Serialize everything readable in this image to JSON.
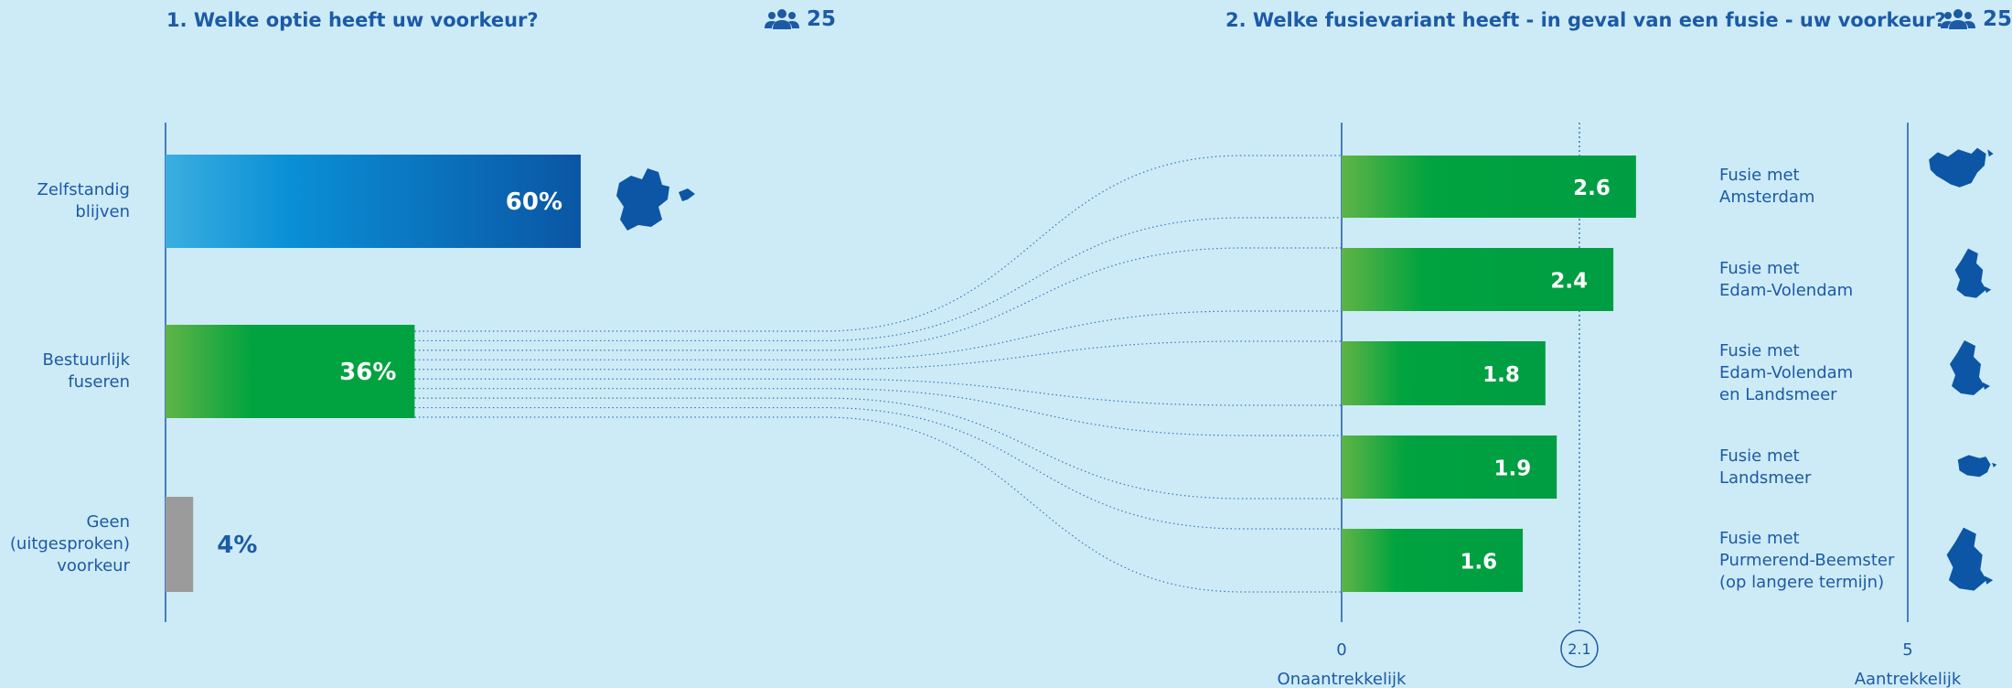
{
  "colors": {
    "background": "#cdebf7",
    "text": "#1c5aa6",
    "blue_bar_start": "#3aaee0",
    "blue_bar_end": "#0a56a4",
    "green_bar_start": "#5fb446",
    "green_bar_end": "#00a33f",
    "grey_bar": "#9b9b9b",
    "map_fill": "#0d56a5"
  },
  "icons": {
    "respondents": "people-group-icon",
    "map": "municipality-map-icon"
  },
  "chart_data": [
    {
      "type": "bar",
      "orientation": "horizontal",
      "title": "1. Welke optie heeft uw voorkeur?",
      "respondents": "25",
      "categories": [
        "Zelfstandig blijven",
        "Bestuurlijk fuseren",
        "Geen (uitgesproken) voorkeur"
      ],
      "values": [
        60,
        36,
        4
      ],
      "value_labels": [
        "60%",
        "36%",
        "4%"
      ],
      "unit": "%",
      "xlim": [
        0,
        100
      ]
    },
    {
      "type": "bar",
      "orientation": "horizontal",
      "title": "2. Welke fusievariant heeft - in geval van een fusie - uw voorkeur?",
      "respondents": "25",
      "categories": [
        "Fusie met Amsterdam",
        "Fusie met Edam-Volendam",
        "Fusie met Edam-Volendam en Landsmeer",
        "Fusie met Landsmeer",
        "Fusie met Purmerend-Beemster (op langere termijn)"
      ],
      "category_lines": [
        [
          "Fusie met",
          "Amsterdam"
        ],
        [
          "Fusie met",
          "Edam-Volendam"
        ],
        [
          "Fusie met",
          "Edam-Volendam",
          "en Landsmeer"
        ],
        [
          "Fusie met",
          "Landsmeer"
        ],
        [
          "Fusie met",
          "Purmerend-Beemster",
          "(op langere termijn)"
        ]
      ],
      "values": [
        2.6,
        2.4,
        1.8,
        1.9,
        1.6
      ],
      "value_labels": [
        "2.6",
        "2.4",
        "1.8",
        "1.9",
        "1.6"
      ],
      "xlim": [
        0,
        5
      ],
      "reference_value": 2.1,
      "reference_label": "2.1",
      "axis_min_label": "0",
      "axis_max_label": "5",
      "axis_min_caption": "Onaantrekkelijk",
      "axis_max_caption": "Aantrekkelijk"
    }
  ],
  "left_category_lines": [
    [
      "Zelfstandig",
      "blijven"
    ],
    [
      "Bestuurlijk",
      "fuseren"
    ],
    [
      "Geen",
      "(uitgesproken)",
      "voorkeur"
    ]
  ]
}
